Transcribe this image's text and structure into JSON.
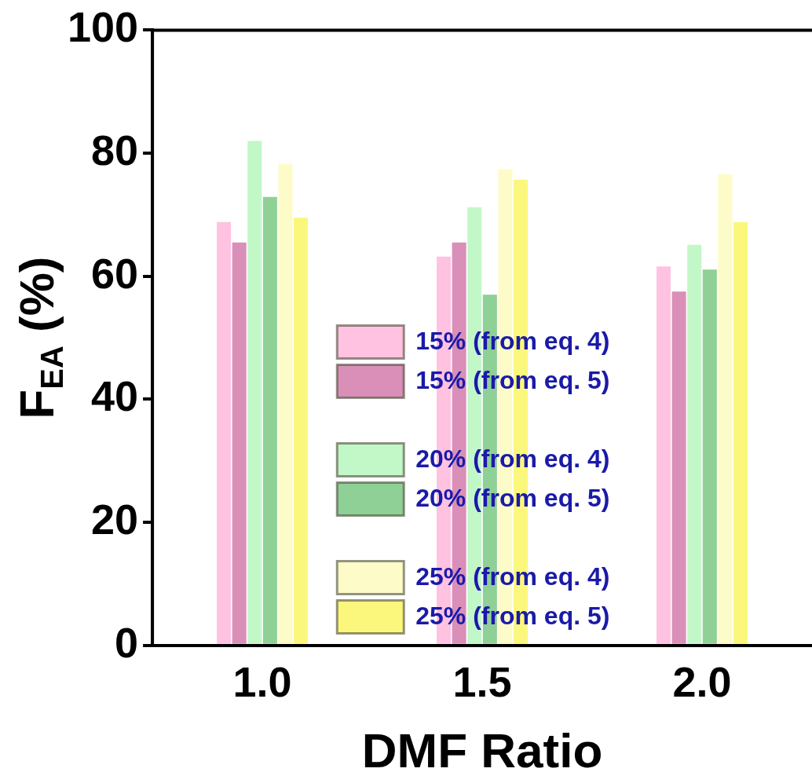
{
  "chart_data": {
    "type": "bar",
    "xlabel": "DMF Ratio",
    "ylabel": "F$_{EA}$ (%)",
    "categories": [
      "1.0",
      "1.5",
      "2.0"
    ],
    "series": [
      {
        "name": "15% (from eq. 4)",
        "color": "#ffc2e1",
        "values": [
          68.8,
          63.2,
          61.6
        ]
      },
      {
        "name": "15% (from eq. 5)",
        "color": "#d98fb8",
        "values": [
          65.5,
          65.5,
          57.5
        ]
      },
      {
        "name": "20% (from eq. 4)",
        "color": "#c2f7c8",
        "values": [
          82,
          71.2,
          65.1
        ]
      },
      {
        "name": "20% (from eq. 5)",
        "color": "#8fd097",
        "values": [
          72.9,
          57,
          61.1
        ]
      },
      {
        "name": "25% (from eq. 4)",
        "color": "#fdfcc8",
        "values": [
          78.3,
          77.4,
          76.6
        ]
      },
      {
        "name": "25% (from eq. 5)",
        "color": "#fbf77d",
        "values": [
          69.5,
          75.7,
          68.8
        ]
      }
    ],
    "ylim": [
      0,
      100
    ],
    "yticks": [
      0,
      20,
      40,
      60,
      80,
      100
    ],
    "grid": false,
    "legend": "center"
  }
}
